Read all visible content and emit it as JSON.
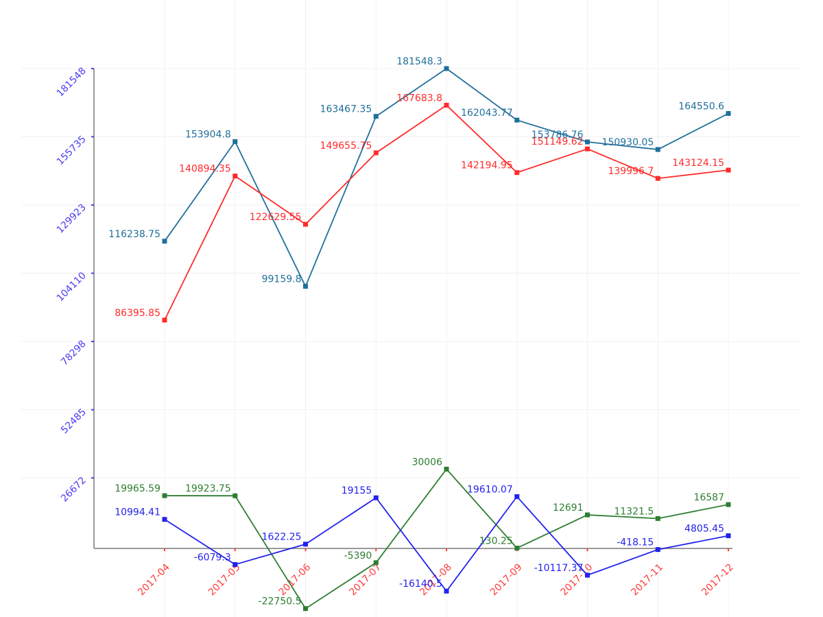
{
  "chart_data": {
    "type": "line",
    "title": "",
    "xlabel": "",
    "ylabel": "",
    "categories": [
      "2017-04",
      "2017-05",
      "2017-06",
      "2017-07",
      "2017-08",
      "2017-09",
      "2017-10",
      "2017-11",
      "2017-12"
    ],
    "y_ticks": [
      "26672",
      "52485",
      "78298",
      "104110",
      "129923",
      "155735",
      "181548"
    ],
    "y_tick_values": [
      26672,
      52485,
      78298,
      104110,
      129923,
      155735,
      181548
    ],
    "ylim": [
      -26000,
      181548
    ],
    "grid": true,
    "legend": "none",
    "colors": {
      "ytick": "#4a3df0",
      "xtick": "#ff3b3b",
      "axis": "#9a9a9a",
      "grid": "#f1f1f1"
    },
    "series": [
      {
        "color": "#1f6f9b",
        "values": [
          116238.75,
          153904.8,
          99159.8,
          163467.35,
          181548.3,
          162043.77,
          153786.76,
          150930.05,
          164550.6
        ],
        "labels": [
          "116238.75",
          "153904.8",
          "99159.8",
          "163467.35",
          "181548.3",
          "162043.77",
          "153786.76",
          "150930.05",
          "164550.6"
        ]
      },
      {
        "color": "#ff2a2a",
        "values": [
          86395.85,
          140894.35,
          122629.55,
          149655.75,
          167683.8,
          142194.95,
          151149.62,
          139996.7,
          143124.15
        ],
        "labels": [
          "86395.85",
          "140894.35",
          "122629.55",
          "149655.75",
          "167683.8",
          "142194.95",
          "151149.62",
          "139996.7",
          "143124.15"
        ]
      },
      {
        "color": "#2e7d32",
        "values": [
          19965.59,
          19923.75,
          -22750.5,
          -5390,
          30006,
          130.25,
          12691,
          11321.5,
          16587
        ],
        "labels": [
          "19965.59",
          "19923.75",
          "-22750.5",
          "-5390",
          "30006",
          "130.25",
          "12691",
          "11321.5",
          "16587"
        ]
      },
      {
        "color": "#2222ee",
        "values": [
          10994.41,
          -6079.3,
          1622.25,
          19155,
          -16140.5,
          19610.07,
          -10117.37,
          -418.15,
          4805.45
        ],
        "labels": [
          "10994.41",
          "-6079.3",
          "1622.25",
          "19155",
          "-16140.5",
          "19610.07",
          "-10117.37",
          "-418.15",
          "4805.45"
        ]
      }
    ]
  }
}
